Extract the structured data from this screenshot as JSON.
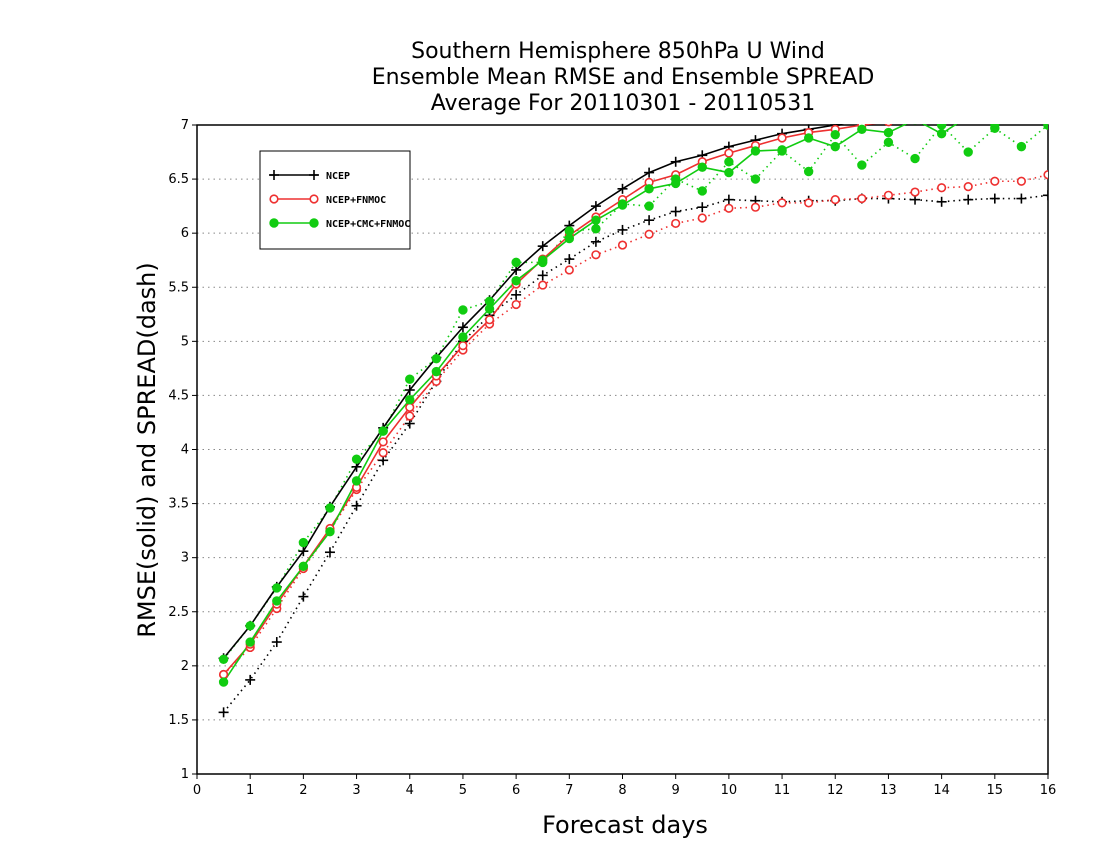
{
  "chart_data": {
    "type": "line",
    "title_lines": [
      "Southern Hemisphere 850hPa U Wind",
      "Ensemble Mean RMSE and Ensemble SPREAD",
      "Average For 20110301 - 20110531"
    ],
    "xlabel": "Forecast days",
    "ylabel": "RMSE(solid) and SPREAD(dash)",
    "xlim": [
      0,
      16
    ],
    "ylim": [
      1,
      7
    ],
    "x_ticks": [
      "0",
      "1",
      "2",
      "3",
      "4",
      "5",
      "6",
      "7",
      "8",
      "9",
      "10",
      "11",
      "12",
      "13",
      "14",
      "15",
      "16"
    ],
    "y_ticks": [
      "1",
      "1.5",
      "2",
      "2.5",
      "3",
      "3.5",
      "4",
      "4.5",
      "5",
      "5.5",
      "6",
      "6.5",
      "7"
    ],
    "grid": "horizontal dotted",
    "legend_position": "upper-left",
    "x": [
      0.5,
      1,
      1.5,
      2,
      2.5,
      3,
      3.5,
      4,
      4.5,
      5,
      5.5,
      6,
      6.5,
      7,
      7.5,
      8,
      8.5,
      9,
      9.5,
      10,
      10.5,
      11,
      11.5,
      12,
      12.5,
      13,
      13.5,
      14,
      14.5,
      15,
      15.5,
      16
    ],
    "series": [
      {
        "name": "NCEP",
        "color": "#000000",
        "marker": "plus",
        "rmse": [
          2.07,
          2.37,
          2.73,
          3.06,
          3.47,
          3.84,
          4.2,
          4.55,
          4.85,
          5.13,
          5.38,
          5.66,
          5.88,
          6.07,
          6.25,
          6.41,
          6.56,
          6.66,
          6.72,
          6.8,
          6.86,
          6.92,
          6.96,
          7.0,
          7.05,
          7.08,
          7.1,
          7.12,
          7.14,
          7.15,
          7.17,
          7.18
        ],
        "spread": [
          1.57,
          1.87,
          2.22,
          2.64,
          3.05,
          3.48,
          3.9,
          4.24,
          4.63,
          5.0,
          5.24,
          5.43,
          5.61,
          5.76,
          5.92,
          6.03,
          6.12,
          6.2,
          6.24,
          6.31,
          6.3,
          6.29,
          6.3,
          6.3,
          6.32,
          6.32,
          6.31,
          6.29,
          6.31,
          6.32,
          6.32,
          6.35
        ]
      },
      {
        "name": "NCEP+FNMOC",
        "color": "#ee3030",
        "marker": "circle",
        "rmse": [
          1.92,
          2.2,
          2.57,
          2.92,
          3.27,
          3.65,
          4.07,
          4.39,
          4.68,
          4.96,
          5.2,
          5.53,
          5.76,
          5.98,
          6.15,
          6.31,
          6.47,
          6.54,
          6.66,
          6.74,
          6.81,
          6.88,
          6.93,
          6.96,
          7.0,
          7.03,
          7.06,
          7.08,
          7.1,
          7.12,
          7.14,
          7.15
        ],
        "spread": [
          1.92,
          2.17,
          2.53,
          2.9,
          3.25,
          3.63,
          3.97,
          4.31,
          4.63,
          4.92,
          5.16,
          5.34,
          5.52,
          5.66,
          5.8,
          5.89,
          5.99,
          6.09,
          6.14,
          6.23,
          6.24,
          6.28,
          6.28,
          6.31,
          6.32,
          6.35,
          6.38,
          6.42,
          6.43,
          6.48,
          6.48,
          6.54
        ]
      },
      {
        "name": "NCEP+CMC+FNMOC",
        "color": "#11cc11",
        "marker": "filled-circle",
        "rmse": [
          1.85,
          2.22,
          2.6,
          2.92,
          3.24,
          3.71,
          4.17,
          4.46,
          4.72,
          5.04,
          5.3,
          5.56,
          5.75,
          5.95,
          6.12,
          6.26,
          6.41,
          6.46,
          6.61,
          6.56,
          6.76,
          6.77,
          6.88,
          6.8,
          6.96,
          6.93,
          7.05,
          6.92,
          7.08,
          7.01,
          7.1,
          7.0
        ],
        "spread": [
          2.06,
          2.37,
          2.72,
          3.14,
          3.46,
          3.91,
          4.17,
          4.65,
          4.84,
          5.29,
          5.37,
          5.73,
          5.73,
          6.02,
          6.04,
          6.27,
          6.25,
          6.5,
          6.39,
          6.66,
          6.5,
          6.76,
          6.57,
          6.91,
          6.63,
          6.84,
          6.69,
          7.0,
          6.75,
          6.97,
          6.8,
          7.0
        ]
      }
    ]
  }
}
